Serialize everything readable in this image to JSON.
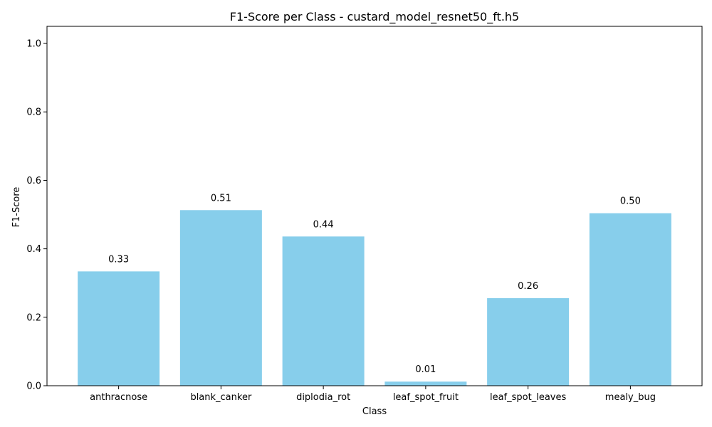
{
  "chart_data": {
    "type": "bar",
    "title": "F1-Score per Class - custard_model_resnet50_ft.h5",
    "xlabel": "Class",
    "ylabel": "F1-Score",
    "categories": [
      "anthracnose",
      "blank_canker",
      "diplodia_rot",
      "leaf_spot_fruit",
      "leaf_spot_leaves",
      "mealy_bug"
    ],
    "values": [
      0.334,
      0.513,
      0.436,
      0.012,
      0.256,
      0.504
    ],
    "value_labels": [
      "0.33",
      "0.51",
      "0.44",
      "0.01",
      "0.26",
      "0.50"
    ],
    "ylim": [
      0,
      1.05
    ],
    "yticks": [
      0.0,
      0.2,
      0.4,
      0.6,
      0.8,
      1.0
    ],
    "ytick_labels": [
      "0.0",
      "0.2",
      "0.4",
      "0.6",
      "0.8",
      "1.0"
    ],
    "grid": false,
    "bar_color": "#87CEEB"
  }
}
